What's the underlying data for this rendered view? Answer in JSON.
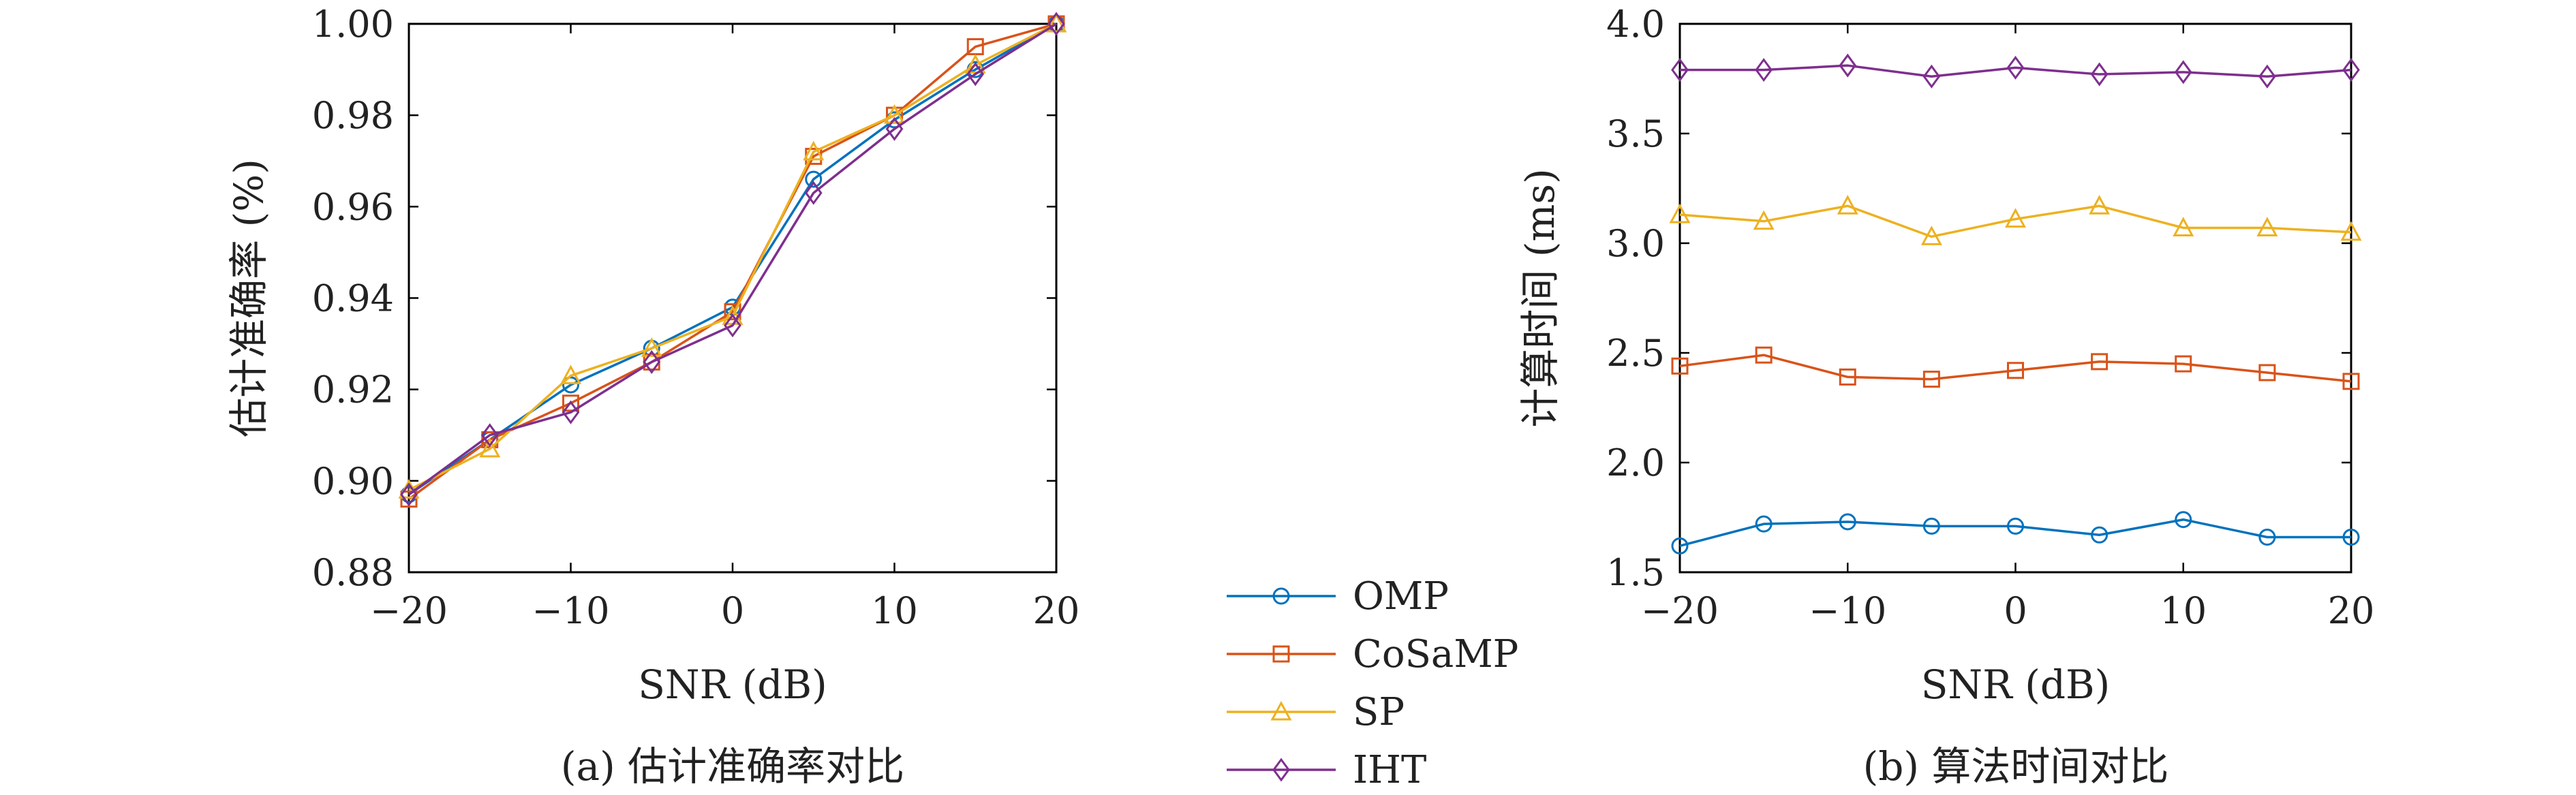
{
  "figure": {
    "legend": {
      "position": "bottom-center",
      "entries": [
        {
          "label": "OMP",
          "color": "#0072BD",
          "marker": "circle"
        },
        {
          "label": "CoSaMP",
          "color": "#D95319",
          "marker": "square"
        },
        {
          "label": "SP",
          "color": "#EDB120",
          "marker": "triangle"
        },
        {
          "label": "IHT",
          "color": "#7E2F8E",
          "marker": "diamond"
        }
      ]
    }
  },
  "chart_data": [
    {
      "type": "line",
      "caption": "(a) 估计准确率对比",
      "xlabel": "SNR (dB)",
      "ylabel": "估计准确率 (%)",
      "x": [
        -20,
        -15,
        -10,
        -5,
        0,
        5,
        10,
        15,
        20
      ],
      "xlim": [
        -20,
        20
      ],
      "ylim": [
        0.88,
        1.0
      ],
      "xticks": [
        -20,
        -10,
        0,
        10,
        20
      ],
      "xtick_labels": [
        "−20",
        "−10",
        "0",
        "10",
        "20"
      ],
      "yticks": [
        0.88,
        0.9,
        0.92,
        0.94,
        0.96,
        0.98,
        1.0
      ],
      "ytick_labels": [
        "0.88",
        "0.90",
        "0.92",
        "0.94",
        "0.96",
        "0.98",
        "1.00"
      ],
      "grid": false,
      "series": [
        {
          "name": "OMP",
          "values": [
            0.897,
            0.909,
            0.921,
            0.929,
            0.938,
            0.966,
            0.979,
            0.99,
            1.0
          ]
        },
        {
          "name": "CoSaMP",
          "values": [
            0.896,
            0.909,
            0.917,
            0.926,
            0.937,
            0.971,
            0.98,
            0.995,
            1.0
          ]
        },
        {
          "name": "SP",
          "values": [
            0.898,
            0.907,
            0.923,
            0.929,
            0.936,
            0.972,
            0.98,
            0.991,
            1.0
          ]
        },
        {
          "name": "IHT",
          "values": [
            0.897,
            0.91,
            0.915,
            0.926,
            0.934,
            0.963,
            0.977,
            0.989,
            1.0
          ]
        }
      ]
    },
    {
      "type": "line",
      "caption": "(b) 算法时间对比",
      "xlabel": "SNR (dB)",
      "ylabel": "计算时间 (ms)",
      "x": [
        -20,
        -15,
        -10,
        -5,
        0,
        5,
        10,
        15,
        20
      ],
      "xlim": [
        -20,
        20
      ],
      "ylim": [
        1.5,
        4.0
      ],
      "xticks": [
        -20,
        -10,
        0,
        10,
        20
      ],
      "xtick_labels": [
        "−20",
        "−10",
        "0",
        "10",
        "20"
      ],
      "yticks": [
        1.5,
        2.0,
        2.5,
        3.0,
        3.5,
        4.0
      ],
      "ytick_labels": [
        "1.5",
        "2.0",
        "2.5",
        "3.0",
        "3.5",
        "4.0"
      ],
      "grid": false,
      "series": [
        {
          "name": "OMP",
          "values": [
            1.62,
            1.72,
            1.73,
            1.71,
            1.71,
            1.67,
            1.74,
            1.66,
            1.66
          ]
        },
        {
          "name": "CoSaMP",
          "values": [
            2.44,
            2.49,
            2.39,
            2.38,
            2.42,
            2.46,
            2.45,
            2.41,
            2.37
          ]
        },
        {
          "name": "SP",
          "values": [
            3.13,
            3.1,
            3.17,
            3.03,
            3.11,
            3.17,
            3.07,
            3.07,
            3.05
          ]
        },
        {
          "name": "IHT",
          "values": [
            3.79,
            3.79,
            3.81,
            3.76,
            3.8,
            3.77,
            3.78,
            3.76,
            3.79
          ]
        }
      ]
    }
  ]
}
